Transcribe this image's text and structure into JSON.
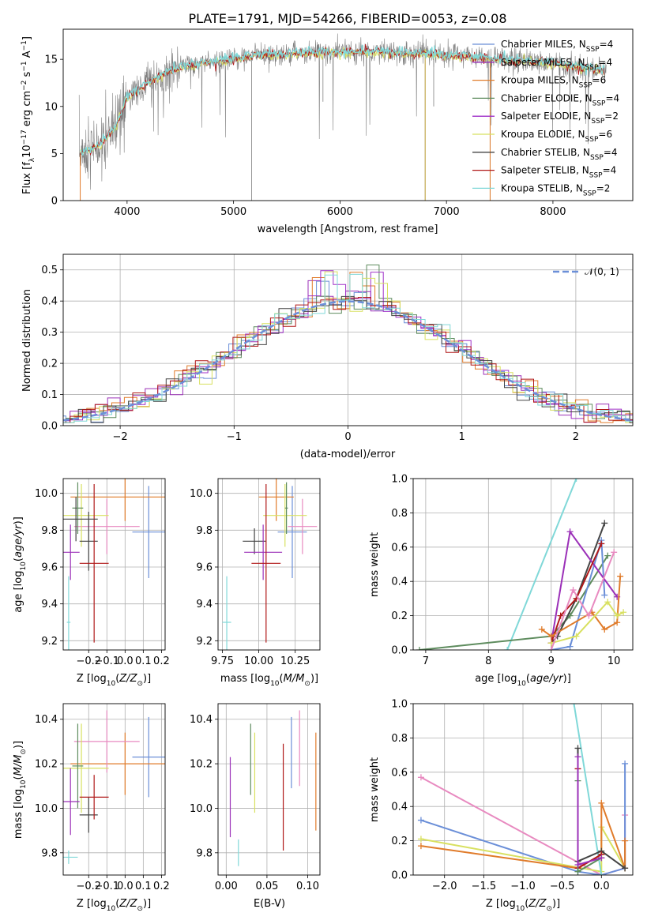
{
  "figure": {
    "title": "PLATE=1791, MJD=54266, FIBERID=0053, z=0.08"
  },
  "colors": {
    "Chabrier MILES": "#6b8fd8",
    "Salpeter MILES": "#9b30b8",
    "Kroupa MILES": "#e07b2a",
    "Chabrier ELODIE": "#5e8c5e",
    "Salpeter ELODIE": "#a030c8",
    "Kroupa ELODIE": "#d8e060",
    "Chabrier STELIB": "#444444",
    "Salpeter STELIB": "#b01818",
    "Kroupa STELIB": "#80d8d8",
    "pink": "#e88ac0",
    "data": "#808080",
    "normal": "#6b8fd8"
  },
  "chart_data": [
    {
      "type": "line",
      "name": "spectrum",
      "xlabel": "wavelength [Angstrom, rest frame]",
      "ylabel": "Flux [f_λ10^-17 erg cm^-2 s^-1 A^-1]",
      "xlim": [
        3400,
        8750
      ],
      "ylim": [
        0,
        18.2
      ],
      "xticks": [
        4000,
        5000,
        6000,
        7000,
        8000
      ],
      "yticks": [
        0,
        5,
        10,
        15
      ],
      "legend_position": "right",
      "legend": [
        {
          "label": "Chabrier MILES, N",
          "sub": "SSP",
          "suffix": "=4"
        },
        {
          "label": "Salpeter MILES, N",
          "sub": "SSP",
          "suffix": "=4"
        },
        {
          "label": "Kroupa MILES, N",
          "sub": "SSP",
          "suffix": "=6"
        },
        {
          "label": "Chabrier ELODIE, N",
          "sub": "SSP",
          "suffix": "=4"
        },
        {
          "label": "Salpeter ELODIE, N",
          "sub": "SSP",
          "suffix": "=2"
        },
        {
          "label": "Kroupa ELODIE, N",
          "sub": "SSP",
          "suffix": "=6"
        },
        {
          "label": "Chabrier STELIB, N",
          "sub": "SSP",
          "suffix": "=4"
        },
        {
          "label": "Salpeter STELIB, N",
          "sub": "SSP",
          "suffix": "=4"
        },
        {
          "label": "Kroupa STELIB, N",
          "sub": "SSP",
          "suffix": "=2"
        }
      ],
      "continuum": [
        [
          3550,
          5.0
        ],
        [
          3700,
          5.6
        ],
        [
          3800,
          6.5
        ],
        [
          3900,
          8.0
        ],
        [
          4000,
          11.0
        ],
        [
          4200,
          12.5
        ],
        [
          4400,
          13.8
        ],
        [
          4600,
          14.4
        ],
        [
          4800,
          14.8
        ],
        [
          5000,
          15.0
        ],
        [
          5200,
          15.4
        ],
        [
          5500,
          15.6
        ],
        [
          6000,
          15.8
        ],
        [
          6500,
          15.7
        ],
        [
          7000,
          15.5
        ],
        [
          7500,
          15.0
        ],
        [
          8000,
          14.6
        ],
        [
          8500,
          13.8
        ]
      ]
    },
    {
      "type": "histogram",
      "name": "residuals",
      "xlabel": "(data-model)/error",
      "ylabel": "Normed distribution",
      "xlim": [
        -2.5,
        2.5
      ],
      "ylim": [
        0,
        0.55
      ],
      "xticks": [
        -2,
        -1,
        0,
        1,
        2
      ],
      "yticks": [
        0.0,
        0.1,
        0.2,
        0.3,
        0.4,
        0.5
      ],
      "legend": "𝒩(0, 1)",
      "legend_position": "upper right",
      "bin_width": 0.11,
      "grid": true
    },
    {
      "type": "scatter",
      "name": "age-vs-Z",
      "xlabel": "Z [log10(Z/Z⊙)]",
      "ylabel": "age [log10(age/yr)]",
      "xlim": [
        -0.34,
        0.22
      ],
      "ylim": [
        9.15,
        10.08
      ],
      "xticks": [
        -0.2,
        -0.1,
        0.0,
        0.1,
        0.2
      ],
      "yticks": [
        9.2,
        9.4,
        9.6,
        9.8,
        10.0
      ],
      "points": [
        {
          "model": "Chabrier MILES",
          "x": 0.13,
          "y": 9.79,
          "xerr": 0.09,
          "yerr": 0.25
        },
        {
          "model": "Kroupa MILES",
          "x": 0.0,
          "y": 9.98,
          "xerr": 0.3,
          "yerr": 0.13
        },
        {
          "model": "pink",
          "x": -0.1,
          "y": 9.82,
          "xerr": 0.18,
          "yerr": 0.15
        },
        {
          "model": "Kroupa ELODIE",
          "x": -0.24,
          "y": 9.88,
          "xerr": 0.15,
          "yerr": 0.17
        },
        {
          "model": "Chabrier ELODIE",
          "x": -0.26,
          "y": 9.92,
          "xerr": 0.03,
          "yerr": 0.14
        },
        {
          "model": "Chabrier STELIB",
          "x": -0.2,
          "y": 9.74,
          "xerr": 0.05,
          "yerr": 0.16
        },
        {
          "model": "Salpeter MILES",
          "x": -0.3,
          "y": 9.68,
          "xerr": 0.05,
          "yerr": 0.15
        },
        {
          "model": "Salpeter STELIB",
          "x": -0.17,
          "y": 9.62,
          "xerr": 0.08,
          "yerr": 0.43
        },
        {
          "model": "Kroupa STELIB",
          "x": -0.31,
          "y": 9.3,
          "xerr": 0.01,
          "yerr": 0.25
        },
        {
          "model": "Chabrier STELIB",
          "x": -0.27,
          "y": 9.86,
          "xerr": 0.12,
          "yerr": 0.12
        }
      ]
    },
    {
      "type": "scatter",
      "name": "age-vs-mass",
      "xlabel": "mass [log10(M/M⊙)]",
      "xlim": [
        9.72,
        10.42
      ],
      "ylim": [
        9.15,
        10.08
      ],
      "xticks": [
        9.75,
        10.0,
        10.25
      ],
      "yticks": [
        9.2,
        9.4,
        9.6,
        9.8,
        10.0
      ],
      "points": [
        {
          "model": "Chabrier MILES",
          "x": 10.23,
          "y": 9.79,
          "xerr": 0.1,
          "yerr": 0.25
        },
        {
          "model": "Kroupa MILES",
          "x": 10.12,
          "y": 9.98,
          "xerr": 0.12,
          "yerr": 0.13
        },
        {
          "model": "pink",
          "x": 10.3,
          "y": 9.82,
          "xerr": 0.1,
          "yerr": 0.15
        },
        {
          "model": "Kroupa ELODIE",
          "x": 10.18,
          "y": 9.88,
          "xerr": 0.15,
          "yerr": 0.17
        },
        {
          "model": "Chabrier ELODIE",
          "x": 10.19,
          "y": 9.92,
          "xerr": 0.01,
          "yerr": 0.14
        },
        {
          "model": "Chabrier STELIB",
          "x": 9.97,
          "y": 9.74,
          "xerr": 0.08,
          "yerr": 0.07
        },
        {
          "model": "Salpeter MILES",
          "x": 10.03,
          "y": 9.68,
          "xerr": 0.13,
          "yerr": 0.15
        },
        {
          "model": "Salpeter STELIB",
          "x": 10.05,
          "y": 9.62,
          "xerr": 0.1,
          "yerr": 0.43
        },
        {
          "model": "Kroupa STELIB",
          "x": 9.78,
          "y": 9.3,
          "xerr": 0.03,
          "yerr": 0.25
        }
      ]
    },
    {
      "type": "line",
      "name": "mass-weight-vs-age",
      "xlabel": "age [log10(age/yr)]",
      "ylabel": "mass weight",
      "xlim": [
        6.8,
        10.3
      ],
      "ylim": [
        0,
        1.0
      ],
      "xticks": [
        7,
        8,
        9,
        10
      ],
      "yticks": [
        0.0,
        0.2,
        0.4,
        0.6,
        0.8,
        1.0
      ],
      "series": [
        {
          "model": "Kroupa STELIB",
          "x": [
            8.3,
            9.4
          ],
          "y": [
            0.0,
            1.0
          ]
        },
        {
          "model": "Chabrier ELODIE",
          "x": [
            6.9,
            9.0,
            9.3,
            9.9
          ],
          "y": [
            0.0,
            0.08,
            0.2,
            0.55
          ]
        },
        {
          "model": "Chabrier STELIB",
          "x": [
            9.0,
            9.1,
            9.4,
            9.85
          ],
          "y": [
            0.04,
            0.08,
            0.3,
            0.74
          ]
        },
        {
          "model": "Chabrier MILES",
          "x": [
            9.0,
            9.3,
            9.8,
            9.85
          ],
          "y": [
            0.0,
            0.02,
            0.64,
            0.32
          ]
        },
        {
          "model": "Salpeter MILES",
          "x": [
            9.0,
            9.3,
            10.05
          ],
          "y": [
            0.04,
            0.69,
            0.31
          ]
        },
        {
          "model": "Salpeter STELIB",
          "x": [
            9.0,
            9.15,
            9.4,
            9.8
          ],
          "y": [
            0.04,
            0.2,
            0.3,
            0.62
          ]
        },
        {
          "model": "Kroupa MILES",
          "x": [
            8.85,
            9.0,
            9.65,
            9.85,
            10.05,
            10.1
          ],
          "y": [
            0.12,
            0.08,
            0.22,
            0.12,
            0.16,
            0.43
          ]
        },
        {
          "model": "Kroupa ELODIE",
          "x": [
            9.0,
            9.4,
            9.9,
            10.05,
            10.15
          ],
          "y": [
            0.04,
            0.08,
            0.28,
            0.2,
            0.22
          ]
        },
        {
          "model": "pink",
          "x": [
            9.0,
            9.35,
            9.6,
            10.0
          ],
          "y": [
            0.0,
            0.35,
            0.2,
            0.57
          ]
        }
      ]
    },
    {
      "type": "scatter",
      "name": "mass-vs-Z",
      "xlabel": "Z [log10(Z/Z⊙)]",
      "ylabel": "mass [log10(M/M⊙)]",
      "xlim": [
        -0.34,
        0.22
      ],
      "ylim": [
        9.7,
        10.47
      ],
      "xticks": [
        -0.2,
        -0.1,
        0.0,
        0.1,
        0.2
      ],
      "yticks": [
        9.8,
        10.0,
        10.2,
        10.4
      ],
      "points": [
        {
          "model": "Chabrier MILES",
          "x": 0.13,
          "y": 10.23,
          "xerr": 0.09,
          "yerr": 0.18
        },
        {
          "model": "Kroupa MILES",
          "x": 0.0,
          "y": 10.2,
          "xerr": 0.3,
          "yerr": 0.14
        },
        {
          "model": "pink",
          "x": -0.1,
          "y": 10.3,
          "xerr": 0.18,
          "yerr": 0.14
        },
        {
          "model": "Kroupa ELODIE",
          "x": -0.24,
          "y": 10.18,
          "xerr": 0.15,
          "yerr": 0.2
        },
        {
          "model": "Chabrier ELODIE",
          "x": -0.26,
          "y": 10.19,
          "xerr": 0.03,
          "yerr": 0.19
        },
        {
          "model": "Chabrier STELIB",
          "x": -0.2,
          "y": 9.97,
          "xerr": 0.05,
          "yerr": 0.08
        },
        {
          "model": "Salpeter MILES",
          "x": -0.3,
          "y": 10.03,
          "xerr": 0.05,
          "yerr": 0.15
        },
        {
          "model": "Salpeter STELIB",
          "x": -0.17,
          "y": 10.05,
          "xerr": 0.08,
          "yerr": 0.1
        },
        {
          "model": "Kroupa STELIB",
          "x": -0.31,
          "y": 9.78,
          "xerr": 0.05,
          "yerr": 0.03
        }
      ]
    },
    {
      "type": "scatter",
      "name": "mass-vs-EBV",
      "xlabel": "E(B-V)",
      "xlim": [
        -0.01,
        0.115
      ],
      "ylim": [
        9.7,
        10.47
      ],
      "xticks": [
        0.0,
        0.05,
        0.1
      ],
      "yticks": [
        9.8,
        10.0,
        10.2,
        10.4
      ],
      "points": [
        {
          "model": "Chabrier MILES",
          "x": 0.08,
          "y": 10.25,
          "yerr": 0.16
        },
        {
          "model": "Kroupa MILES",
          "x": 0.11,
          "y": 10.12,
          "yerr": 0.22
        },
        {
          "model": "pink",
          "x": 0.09,
          "y": 10.27,
          "yerr": 0.17
        },
        {
          "model": "Kroupa ELODIE",
          "x": 0.035,
          "y": 10.16,
          "yerr": 0.18
        },
        {
          "model": "Chabrier ELODIE",
          "x": 0.03,
          "y": 10.22,
          "yerr": 0.16
        },
        {
          "model": "Salpeter MILES",
          "x": 0.005,
          "y": 10.05,
          "yerr": 0.18
        },
        {
          "model": "Salpeter STELIB",
          "x": 0.07,
          "y": 10.05,
          "yerr": 0.24
        },
        {
          "model": "Kroupa STELIB",
          "x": 0.015,
          "y": 9.8,
          "yerr": 0.06
        }
      ]
    },
    {
      "type": "line",
      "name": "mass-weight-vs-Z",
      "xlabel": "Z [log10(Z/Z⊙)]",
      "ylabel": "mass weight",
      "xlim": [
        -2.4,
        0.4
      ],
      "ylim": [
        0,
        1.0
      ],
      "xticks": [
        -2.0,
        -1.5,
        -1.0,
        -0.5,
        0.0
      ],
      "yticks": [
        0.0,
        0.2,
        0.4,
        0.6,
        0.8,
        1.0
      ],
      "series": [
        {
          "model": "pink",
          "x": [
            -2.3,
            0.0,
            0.3,
            0.3
          ],
          "y": [
            0.57,
            0.0,
            0.04,
            0.35
          ]
        },
        {
          "model": "Chabrier MILES",
          "x": [
            -2.3,
            -0.3,
            0.0,
            0.3,
            0.3
          ],
          "y": [
            0.32,
            0.02,
            0.0,
            0.04,
            0.65
          ]
        },
        {
          "model": "Kroupa ELODIE",
          "x": [
            -2.3,
            0.0,
            0.0,
            0.3
          ],
          "y": [
            0.21,
            0.02,
            0.28,
            0.04
          ]
        },
        {
          "model": "Kroupa MILES",
          "x": [
            -2.3,
            -0.3,
            0.0,
            0.0,
            0.3,
            0.3
          ],
          "y": [
            0.17,
            0.04,
            0.12,
            0.42,
            0.04,
            0.2
          ]
        },
        {
          "model": "Kroupa STELIB",
          "x": [
            -0.35,
            0.0
          ],
          "y": [
            1.0,
            0.0
          ]
        },
        {
          "model": "Chabrier STELIB",
          "x": [
            -0.3,
            -0.3,
            0.0,
            0.3
          ],
          "y": [
            0.74,
            0.08,
            0.14,
            0.04
          ]
        },
        {
          "model": "Salpeter STELIB",
          "x": [
            -0.3,
            -0.3,
            0.0
          ],
          "y": [
            0.62,
            0.04,
            0.12
          ]
        },
        {
          "model": "Chabrier ELODIE",
          "x": [
            -0.3,
            -0.3,
            0.0
          ],
          "y": [
            0.55,
            0.02,
            0.1
          ]
        },
        {
          "model": "Salpeter MILES",
          "x": [
            -0.3,
            -0.3,
            0.0
          ],
          "y": [
            0.69,
            0.06,
            0.1
          ]
        }
      ]
    }
  ]
}
